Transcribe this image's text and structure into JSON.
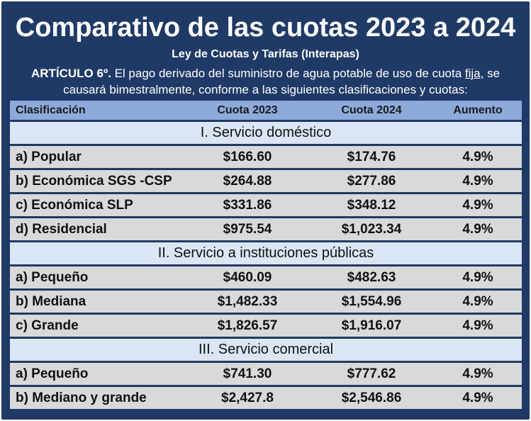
{
  "title": "Comparativo de las cuotas 2023 a 2024",
  "subtitle": "Ley de Cuotas y Tarifas (Interapas)",
  "intro": {
    "article": "ARTÍCULO 6º.",
    "text_before": " El pago derivado del suministro de agua potable de uso de cuota ",
    "underlined": "fija,",
    "text_after": " se causará bimestralmente, conforme a las siguientes clasificaciones y cuotas:"
  },
  "table": {
    "headers": [
      "Clasificación",
      "Cuota 2023",
      "Cuota 2024",
      "Aumento"
    ],
    "sections": [
      {
        "title": "I. Servicio doméstico",
        "rows": [
          [
            "a) Popular",
            "$166.60",
            "$174.76",
            "4.9%"
          ],
          [
            "b) Económica SGS -CSP",
            "$264.88",
            "$277.86",
            "4.9%"
          ],
          [
            "c) Económica SLP",
            "$331.86",
            "$348.12",
            "4.9%"
          ],
          [
            "d) Residencial",
            "$975.54",
            "$1,023.34",
            "4.9%"
          ]
        ]
      },
      {
        "title": "II. Servicio a instituciones públicas",
        "rows": [
          [
            "a) Pequeño",
            "$460.09",
            "$482.63",
            "4.9%"
          ],
          [
            "b) Mediana",
            "$1,482.33",
            "$1,554.96",
            "4.9%"
          ],
          [
            "c) Grande",
            "$1,826.57",
            "$1,916.07",
            "4.9%"
          ]
        ]
      },
      {
        "title": "III. Servicio comercial",
        "rows": [
          [
            "a) Pequeño",
            "$741.30",
            "$777.62",
            "4.9%"
          ],
          [
            "b) Mediano y grande",
            "$2,427.8",
            "$2,546.86",
            "4.9%"
          ]
        ]
      }
    ]
  },
  "colors": {
    "background": "#1f3a66",
    "header_row": "#8eaadb",
    "section_row": "#dbe5f3",
    "data_row": "#d9d9d9"
  }
}
